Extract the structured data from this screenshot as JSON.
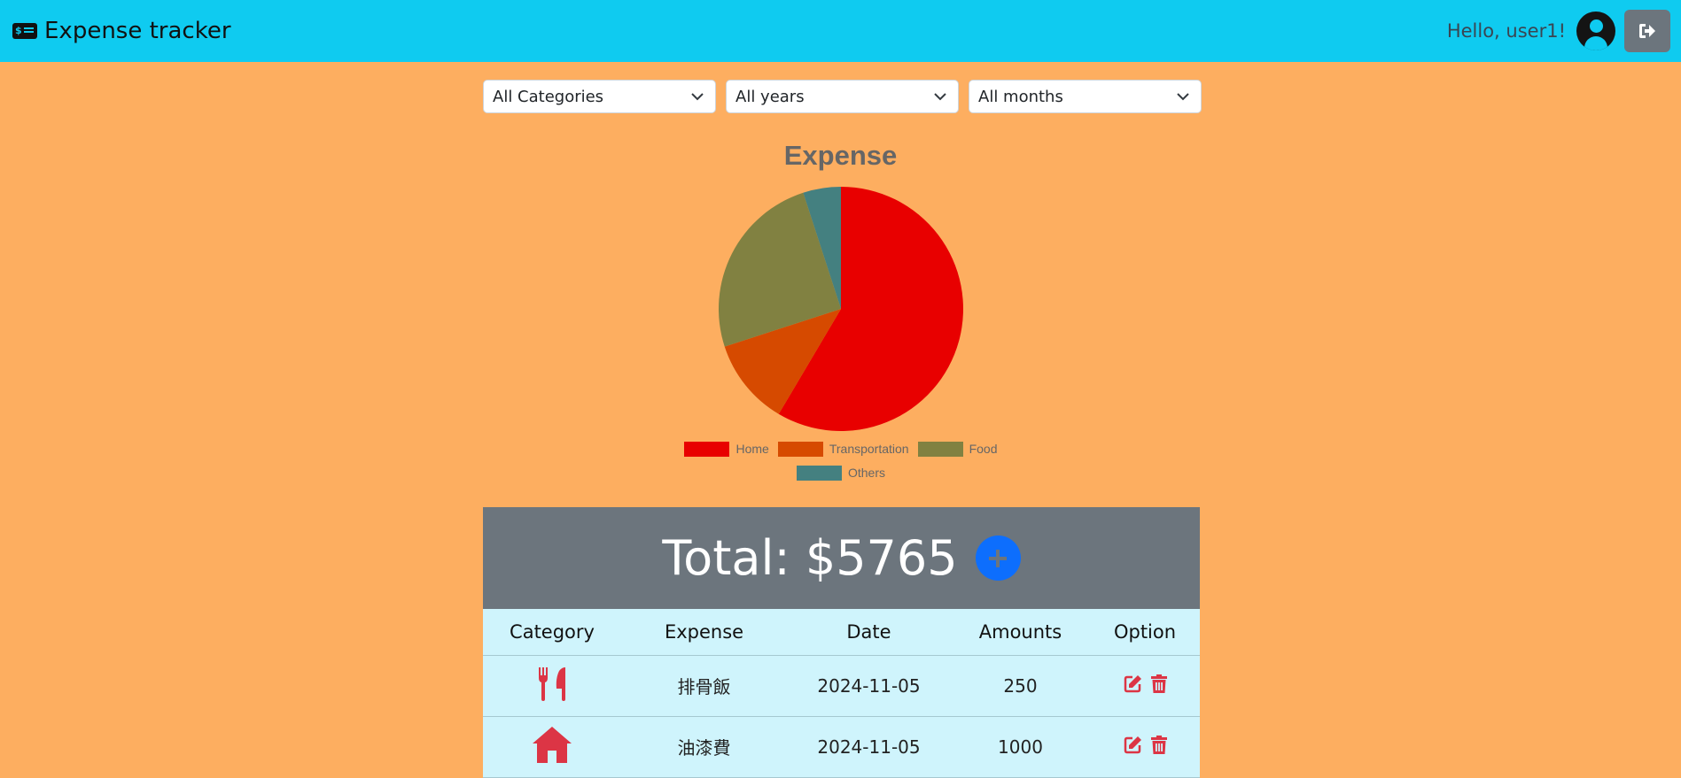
{
  "navbar": {
    "brand": "Expense tracker",
    "brand_icon": "money-bill-icon",
    "greeting": "Hello, user1!",
    "avatar_icon": "user-circle-icon",
    "logout_icon": "sign-out-icon"
  },
  "filters": {
    "category": "All Categories",
    "year": "All years",
    "month": "All months"
  },
  "chart_title": "Expense",
  "chart_data": {
    "type": "pie",
    "title": "Expense",
    "labels": [
      "Home",
      "Transportation",
      "Food",
      "Others"
    ],
    "values": [
      58.5,
      11.5,
      25.0,
      5.0
    ],
    "colors": [
      "#e80000",
      "#d64a00",
      "#818141",
      "#448080"
    ],
    "legend": "bottom"
  },
  "legend": [
    {
      "label": "Home",
      "color": "#e80000"
    },
    {
      "label": "Transportation",
      "color": "#d64a00"
    },
    {
      "label": "Food",
      "color": "#818141"
    },
    {
      "label": "Others",
      "color": "#448080"
    }
  ],
  "total": {
    "text": "Total: $5765"
  },
  "table": {
    "headers": [
      "Category",
      "Expense",
      "Date",
      "Amounts",
      "Option"
    ],
    "rows": [
      {
        "category_icon": "utensils-icon",
        "expense": "排骨飯",
        "date": "2024-11-05",
        "amount": "250"
      },
      {
        "category_icon": "home-icon",
        "expense": "油漆費",
        "date": "2024-11-05",
        "amount": "1000"
      }
    ]
  },
  "colors": {
    "navbar": "#0fcbf0",
    "page_bg": "#fdae60",
    "danger": "#dc3545",
    "primary": "#0d6efd",
    "secondary": "#6c757d"
  }
}
